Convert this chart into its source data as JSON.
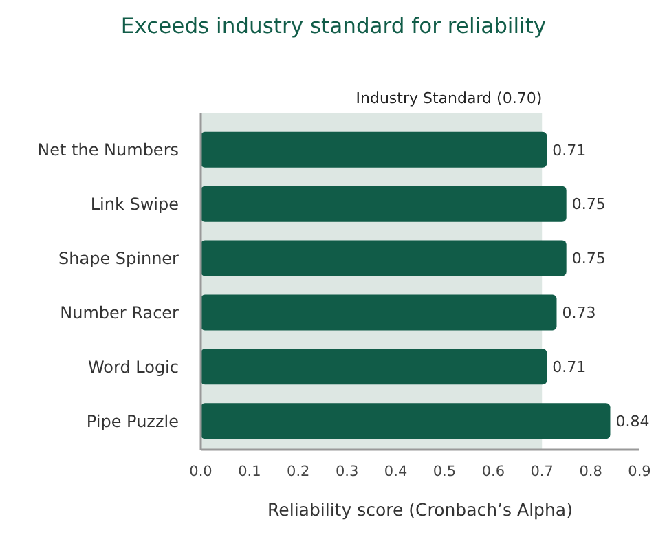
{
  "chart_data": {
    "type": "bar",
    "orientation": "horizontal",
    "title": "Exceeds industry standard for reliability",
    "xlabel": "Reliability score (Cronbach’s Alpha)",
    "categories": [
      "Net the Numbers",
      "Link Swipe",
      "Shape Spinner",
      "Number Racer",
      "Word Logic",
      "Pipe Puzzle"
    ],
    "values": [
      0.71,
      0.75,
      0.75,
      0.73,
      0.71,
      0.84
    ],
    "color": "#115c48",
    "data_labels": true,
    "xlim": [
      0,
      0.9
    ],
    "xticks": [
      {
        "value": 0,
        "label": "0.0"
      },
      {
        "value": 0.1,
        "label": "0.1"
      },
      {
        "value": 0.2,
        "label": "0.2"
      },
      {
        "value": 0.3,
        "label": "0.3"
      },
      {
        "value": 0.4,
        "label": "0.4"
      },
      {
        "value": 0.5,
        "label": "0.5"
      },
      {
        "value": 0.6,
        "label": "0.6"
      },
      {
        "value": 0.7,
        "label": "0.7"
      },
      {
        "value": 0.8,
        "label": "0.8"
      },
      {
        "value": 0.9,
        "label": "0.9"
      }
    ],
    "bands": [
      {
        "axis": "x",
        "from": 0,
        "to": 0.7,
        "label": "Industry Standard (0.70)",
        "color": "#dde7e3"
      }
    ],
    "grid": false
  }
}
